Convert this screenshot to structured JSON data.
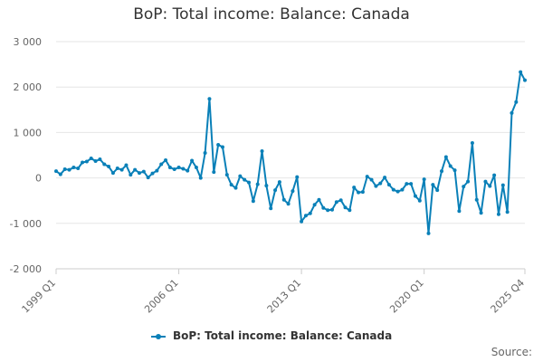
{
  "chart_data": {
    "type": "line",
    "title": "BoP: Total income: Balance: Canada",
    "xlabel": "",
    "ylabel": "",
    "ylim": [
      -2000,
      3000
    ],
    "y_ticks": [
      "3 000",
      "2 000",
      "1 000",
      "0",
      "-1 000",
      "-2 000"
    ],
    "y_tick_values": [
      3000,
      2000,
      1000,
      0,
      -1000,
      -2000
    ],
    "x_ticks": [
      "1999 Q1",
      "2006 Q1",
      "2013 Q1",
      "2020 Q1",
      "2025 Q4"
    ],
    "x_tick_indices": [
      0,
      28,
      56,
      84,
      107
    ],
    "grid": "horizontal",
    "legend_position": "bottom",
    "color": "#0a80b8",
    "series": [
      {
        "name": "BoP: Total income: Balance: Canada",
        "values": [
          150,
          80,
          190,
          180,
          230,
          210,
          340,
          360,
          430,
          370,
          410,
          300,
          250,
          110,
          210,
          180,
          280,
          70,
          180,
          110,
          140,
          10,
          100,
          160,
          300,
          390,
          230,
          190,
          230,
          200,
          160,
          380,
          230,
          0,
          550,
          1740,
          130,
          730,
          680,
          70,
          -150,
          -220,
          40,
          -40,
          -100,
          -510,
          -140,
          590,
          -170,
          -670,
          -270,
          -90,
          -480,
          -570,
          -290,
          20,
          -960,
          -830,
          -780,
          -590,
          -480,
          -660,
          -710,
          -700,
          -530,
          -490,
          -650,
          -710,
          -210,
          -320,
          -310,
          30,
          -40,
          -180,
          -120,
          10,
          -150,
          -260,
          -300,
          -260,
          -130,
          -130,
          -400,
          -500,
          -30,
          -1220,
          -150,
          -270,
          150,
          460,
          260,
          170,
          -730,
          -190,
          -80,
          770,
          -480,
          -770,
          -80,
          -180,
          60,
          -800,
          -160,
          -750,
          1430,
          1670,
          2330,
          2150
        ]
      }
    ],
    "legend_label": "BoP: Total income: Balance: Canada",
    "source_label": "Source:"
  }
}
